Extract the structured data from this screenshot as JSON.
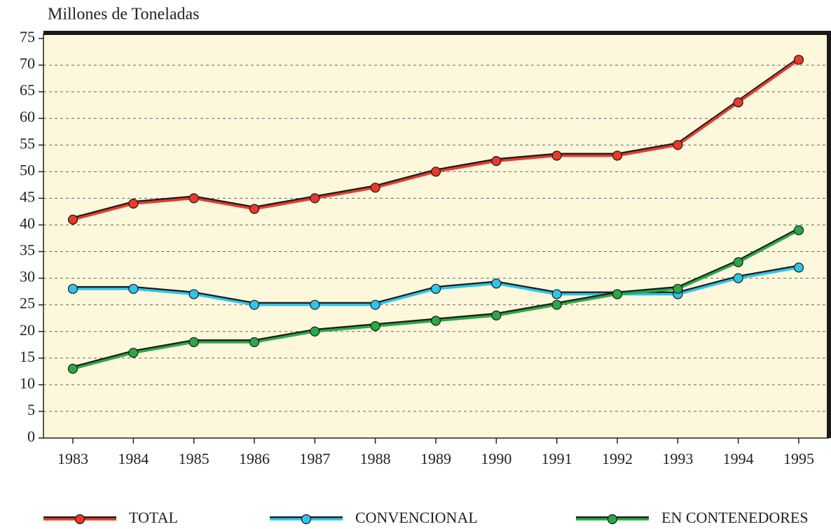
{
  "chart_data": {
    "type": "line",
    "y_label": "Millones de Toneladas",
    "categories": [
      "1983",
      "1984",
      "1985",
      "1986",
      "1987",
      "1988",
      "1989",
      "1990",
      "1991",
      "1992",
      "1993",
      "1994",
      "1995"
    ],
    "series": [
      {
        "name": "TOTAL",
        "color": "#e8392a",
        "values": [
          41,
          44,
          45,
          43,
          45,
          47,
          50,
          52,
          53,
          53,
          55,
          63,
          71
        ]
      },
      {
        "name": "CONVENCIONAL",
        "color": "#2fc4ea",
        "values": [
          28,
          28,
          27,
          25,
          25,
          25,
          28,
          29,
          27,
          27,
          27,
          30,
          32
        ]
      },
      {
        "name": "EN CONTENEDORES",
        "color": "#2aa845",
        "values": [
          13,
          16,
          18,
          18,
          20,
          21,
          22,
          23,
          25,
          27,
          28,
          33,
          39
        ]
      }
    ],
    "ylim": [
      0,
      75
    ],
    "yticks": [
      0,
      5,
      10,
      15,
      20,
      25,
      30,
      35,
      40,
      45,
      50,
      55,
      60,
      65,
      70,
      75
    ],
    "grid": true,
    "legend": "bottom"
  }
}
